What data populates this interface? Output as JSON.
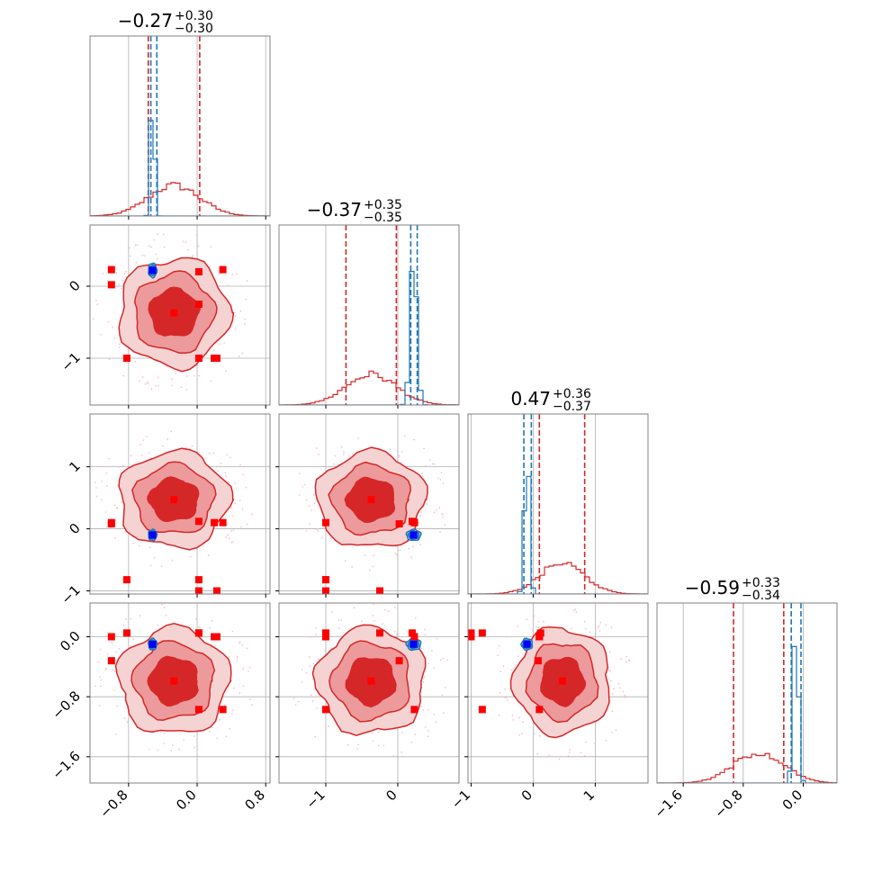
{
  "chart_data": {
    "type": "corner",
    "colors": {
      "primary": "#d62728",
      "secondary": "#1f77b4",
      "marker_primary": "#ff0000",
      "marker_secondary": "#0000ff"
    },
    "grid": true,
    "parameters": [
      {
        "range": [
          -1.25,
          0.85
        ],
        "ticks": [
          -0.8,
          0.0,
          0.8
        ],
        "tick_labels": [
          "−0.8",
          "0.0",
          "0.8"
        ]
      },
      {
        "range": [
          -1.65,
          0.85
        ],
        "ticks": [
          -1,
          0
        ],
        "tick_labels": [
          "−1",
          "0"
        ]
      },
      {
        "range": [
          -1.05,
          1.85
        ],
        "ticks": [
          -1,
          0,
          1
        ],
        "tick_labels": [
          "−1",
          "0",
          "1"
        ]
      },
      {
        "range": [
          -1.95,
          0.45
        ],
        "ticks": [
          -1.6,
          -0.8,
          0.0
        ],
        "tick_labels": [
          "−1.6",
          "−0.8",
          "0.0"
        ]
      }
    ],
    "titles": [
      {
        "value": "−0.27",
        "plus": "+0.30",
        "minus": "−0.30"
      },
      {
        "value": "−0.37",
        "plus": "+0.35",
        "minus": "−0.35"
      },
      {
        "value": "0.47",
        "plus": "+0.36",
        "minus": "−0.37"
      },
      {
        "value": "−0.59",
        "plus": "+0.33",
        "minus": "−0.34"
      }
    ],
    "series": [
      {
        "mean": [
          -0.27,
          -0.37,
          0.47,
          -0.59
        ],
        "sd": [
          0.3,
          0.35,
          0.36,
          0.33
        ],
        "quantiles": [
          [
            -0.57,
            0.03
          ],
          [
            -0.72,
            -0.02
          ],
          [
            0.1,
            0.83
          ],
          [
            -0.93,
            -0.26
          ]
        ],
        "fills": [
          "#f6d3d3",
          "#ec9a9b",
          "#d62728"
        ],
        "markers": [
          -0.27,
          -0.37,
          0.47,
          -0.59
        ]
      },
      {
        "mean": [
          -0.52,
          0.22,
          -0.1,
          -0.1
        ],
        "sd": [
          0.022,
          0.045,
          0.04,
          0.035
        ],
        "quantiles": [
          [
            -0.54,
            -0.47
          ],
          [
            0.18,
            0.27
          ],
          [
            -0.15,
            -0.03
          ],
          [
            -0.16,
            -0.03
          ]
        ],
        "fills": [
          "#a9cce8",
          "#4d9ad0",
          "#1f77b4"
        ],
        "markers": [
          -0.52,
          0.22,
          -0.1,
          -0.1
        ]
      }
    ],
    "extra_markers": [
      [
        -1.0,
        0.02,
        0.08,
        -0.32
      ],
      [
        -1.0,
        0.23,
        0.1,
        0.0
      ],
      [
        0.02,
        -1.0,
        -0.82,
        -0.97
      ],
      [
        0.02,
        -0.25,
        -1.0,
        0.05
      ],
      [
        0.02,
        0.2,
        0.12,
        0.05
      ],
      [
        0.3,
        0.23,
        0.1,
        -0.97
      ],
      [
        0.23,
        -1.0,
        -1.0,
        0.0
      ],
      [
        -0.82,
        -1.0,
        -0.82,
        0.05
      ],
      [
        0.2,
        -1.0,
        0.1,
        0.0
      ]
    ]
  }
}
